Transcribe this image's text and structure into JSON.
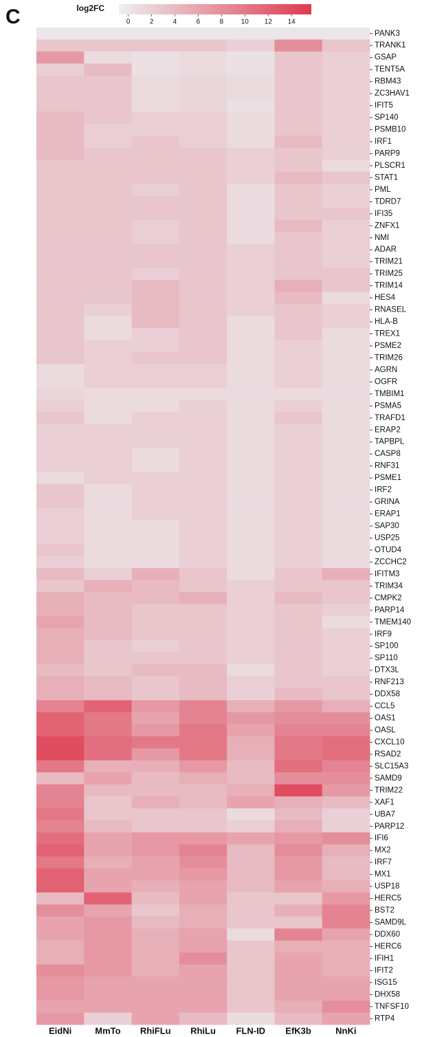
{
  "chart_data": {
    "type": "heatmap",
    "panel_label": "C",
    "colorbar_title": "log2FC",
    "zlim": [
      -0.8,
      15.7
    ],
    "zticks": [
      0,
      2,
      4,
      6,
      8,
      10,
      12,
      14
    ],
    "colorscale": [
      "#eceff1",
      "#df3a4f"
    ],
    "columns": [
      "EidNi",
      "MmTo",
      "RhiFLu",
      "RhiLu",
      "FLN-ID",
      "EfK3b",
      "NnKi"
    ],
    "rows": [
      "PANK3",
      "TRANK1",
      "GSAP",
      "TENT5A",
      "RBM43",
      "ZC3HAV1",
      "IFIT5",
      "SP140",
      "PSMB10",
      "IRF1",
      "PARP9",
      "PLSCR1",
      "STAT1",
      "PML",
      "TDRD7",
      "IFI35",
      "ZNFX1",
      "NMI",
      "ADAR",
      "TRIM21",
      "TRIM25",
      "TRIM14",
      "HES4",
      "RNASEL",
      "HLA-B",
      "TREX1",
      "PSME2",
      "TRIM26",
      "AGRN",
      "OGFR",
      "TMBIM1",
      "PSMA5",
      "TRAFD1",
      "ERAP2",
      "TAPBPL",
      "CASP8",
      "RNF31",
      "PSME1",
      "IRF2",
      "GRINA",
      "ERAP1",
      "SAP30",
      "USP25",
      "OTUD4",
      "ZCCHC2",
      "IFITM3",
      "TRIM34",
      "CMPK2",
      "PARP14",
      "TMEM140",
      "IRF9",
      "SP100",
      "SP110",
      "DTX3L",
      "RNF213",
      "DDX58",
      "CCL5",
      "OAS1",
      "OASL",
      "CXCL10",
      "RSAD2",
      "SLC15A3",
      "SAMD9",
      "TRIM22",
      "XAF1",
      "UBA7",
      "PARP12",
      "IFI6",
      "MX2",
      "IRF7",
      "MX1",
      "USP18",
      "HERC5",
      "BST2",
      "SAMD9L",
      "DDX60",
      "HERC6",
      "IFIH1",
      "IFIT2",
      "ISG15",
      "DHX58",
      "TNFSF10",
      "RTP4"
    ],
    "values": [
      [
        0,
        0,
        0,
        0,
        0,
        0,
        0
      ],
      [
        3,
        3,
        3,
        3,
        2,
        8,
        3
      ],
      [
        7,
        1,
        0.5,
        1,
        0.5,
        3,
        2
      ],
      [
        2,
        4,
        0.5,
        1,
        0.5,
        3,
        2
      ],
      [
        3,
        3,
        1,
        1.5,
        1,
        3,
        2
      ],
      [
        3,
        3,
        1,
        1.5,
        1,
        3,
        2
      ],
      [
        3,
        3,
        1,
        1.5,
        0.5,
        3,
        2
      ],
      [
        4,
        3,
        2,
        2,
        1,
        3,
        2
      ],
      [
        4,
        2,
        2,
        2,
        1,
        3,
        2
      ],
      [
        4,
        2,
        3,
        2,
        1,
        4,
        2
      ],
      [
        4,
        3,
        3,
        3,
        2,
        3,
        2
      ],
      [
        3,
        3,
        3,
        3,
        2,
        3,
        1
      ],
      [
        3,
        3,
        3,
        3,
        2,
        4,
        3
      ],
      [
        3,
        3,
        2,
        3,
        1,
        3,
        2
      ],
      [
        3,
        3,
        3,
        3,
        1,
        3,
        2
      ],
      [
        3,
        3,
        3,
        3,
        1,
        3,
        3
      ],
      [
        3,
        3,
        2,
        3,
        1,
        4,
        2
      ],
      [
        3,
        3,
        2,
        3,
        1,
        3,
        2
      ],
      [
        3,
        3,
        3,
        3,
        2,
        3,
        2
      ],
      [
        3,
        3,
        3,
        3,
        2,
        3,
        2
      ],
      [
        3,
        3,
        2,
        3,
        2,
        3,
        3
      ],
      [
        3,
        3,
        4,
        3,
        2,
        5,
        3
      ],
      [
        3,
        3,
        4,
        3,
        2,
        4,
        1
      ],
      [
        3,
        2,
        4,
        3,
        2,
        3,
        2
      ],
      [
        3,
        1,
        4,
        3,
        1,
        3,
        2
      ],
      [
        3,
        1,
        2,
        3,
        1,
        3,
        1
      ],
      [
        3,
        2,
        2,
        3,
        1,
        2,
        1
      ],
      [
        3,
        2,
        3,
        3,
        1,
        2,
        1
      ],
      [
        1,
        2,
        2,
        2,
        1,
        2,
        1
      ],
      [
        1,
        2,
        2,
        2,
        1,
        2,
        1
      ],
      [
        1.5,
        1,
        1,
        1,
        1,
        1,
        1
      ],
      [
        2,
        1,
        1,
        2,
        1,
        2,
        1
      ],
      [
        3,
        1,
        2,
        2,
        1,
        3,
        1
      ],
      [
        2,
        2,
        2,
        2,
        1,
        2,
        1
      ],
      [
        2,
        2,
        2,
        2,
        1,
        2,
        1
      ],
      [
        2,
        2,
        1,
        2,
        1,
        2,
        1
      ],
      [
        2,
        2,
        1,
        2,
        1,
        2,
        1
      ],
      [
        1,
        2,
        2,
        2,
        1,
        2,
        1
      ],
      [
        3,
        1,
        2,
        2,
        1,
        2,
        1
      ],
      [
        3,
        1,
        2,
        2,
        1,
        2,
        1
      ],
      [
        2,
        1,
        2,
        2,
        1,
        2,
        1
      ],
      [
        2,
        1,
        1,
        2,
        1,
        2,
        1
      ],
      [
        2,
        1,
        1,
        2,
        1,
        2,
        1
      ],
      [
        3,
        1,
        1,
        2,
        1,
        2,
        1
      ],
      [
        2,
        1,
        1,
        2,
        1,
        2,
        1
      ],
      [
        4,
        2,
        5,
        3,
        1,
        3,
        5
      ],
      [
        3,
        5,
        4,
        3,
        2,
        3,
        3
      ],
      [
        5,
        4,
        4,
        5,
        2,
        4,
        3
      ],
      [
        5,
        4,
        3,
        3,
        2,
        3,
        2
      ],
      [
        6,
        4,
        3,
        3,
        2,
        3,
        1
      ],
      [
        5,
        4,
        3,
        3,
        2,
        3,
        2
      ],
      [
        5,
        3,
        2,
        3,
        2,
        3,
        2
      ],
      [
        5,
        3,
        3,
        3,
        2,
        3,
        2
      ],
      [
        4,
        3,
        4,
        4,
        1,
        3,
        2
      ],
      [
        5,
        4,
        3,
        4,
        2,
        3,
        3
      ],
      [
        5,
        4,
        3,
        4,
        2,
        4,
        3
      ],
      [
        9,
        12,
        7,
        9,
        5,
        7,
        5
      ],
      [
        12,
        10,
        6,
        9,
        7,
        8,
        8
      ],
      [
        12,
        10,
        7,
        10,
        6,
        9,
        9
      ],
      [
        14,
        11,
        10,
        10,
        5,
        10,
        11
      ],
      [
        14,
        11,
        7,
        10,
        5,
        10,
        11
      ],
      [
        10,
        5,
        5,
        7,
        4,
        11,
        9
      ],
      [
        4,
        6,
        4,
        5,
        4,
        8,
        8
      ],
      [
        9,
        4,
        4,
        4,
        5,
        14,
        7
      ],
      [
        9,
        3,
        5,
        4,
        6,
        5,
        4
      ],
      [
        10,
        3,
        3,
        3,
        1,
        4,
        2
      ],
      [
        9,
        4,
        3,
        3,
        2,
        5,
        2
      ],
      [
        11,
        6,
        7,
        7,
        6,
        7,
        8
      ],
      [
        12,
        6,
        7,
        9,
        4,
        8,
        5
      ],
      [
        10,
        5,
        6,
        8,
        4,
        7,
        4
      ],
      [
        12,
        6,
        6,
        7,
        4,
        7,
        4
      ],
      [
        12,
        6,
        5,
        6,
        4,
        6,
        5
      ],
      [
        4,
        12,
        4,
        6,
        3,
        3,
        7
      ],
      [
        8,
        6,
        3,
        5,
        3,
        5,
        9
      ],
      [
        6,
        7,
        4,
        5,
        3,
        3,
        9
      ],
      [
        6,
        7,
        5,
        6,
        1,
        9,
        6
      ],
      [
        5,
        7,
        5,
        6,
        3,
        5,
        5
      ],
      [
        5,
        7,
        5,
        8,
        3,
        6,
        5
      ],
      [
        8,
        7,
        5,
        6,
        3,
        6,
        5
      ],
      [
        7,
        6,
        6,
        6,
        3,
        6,
        6
      ],
      [
        7,
        6,
        6,
        6,
        3,
        6,
        6
      ],
      [
        6,
        6,
        6,
        6,
        3,
        5,
        8
      ],
      [
        7,
        2,
        6,
        4,
        1,
        4,
        6
      ]
    ]
  }
}
